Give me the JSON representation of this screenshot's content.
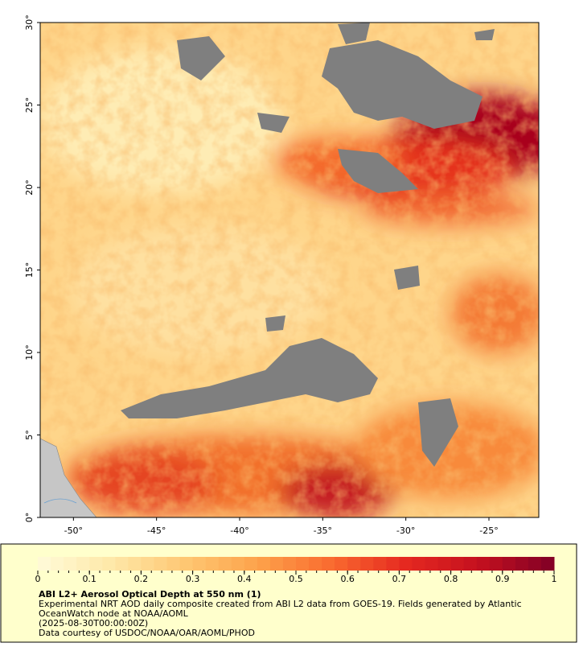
{
  "chart_data": {
    "type": "map",
    "xlim": [
      -52,
      -22
    ],
    "ylim": [
      0,
      30
    ],
    "xticks": [
      {
        "value": -50,
        "label": "-50°"
      },
      {
        "value": -45,
        "label": "-45°"
      },
      {
        "value": -40,
        "label": "-40°"
      },
      {
        "value": -35,
        "label": "-35°"
      },
      {
        "value": -30,
        "label": "-30°"
      },
      {
        "value": -25,
        "label": "-25°"
      }
    ],
    "yticks": [
      {
        "value": 0,
        "label": "0°"
      },
      {
        "value": 5,
        "label": "5°"
      },
      {
        "value": 10,
        "label": "10°"
      },
      {
        "value": 15,
        "label": "15°"
      },
      {
        "value": 20,
        "label": "20°"
      },
      {
        "value": 25,
        "label": "25°"
      },
      {
        "value": 30,
        "label": "30°"
      }
    ],
    "colorbar": {
      "lim": [
        0,
        1
      ],
      "ticks": [
        0,
        0.1,
        0.2,
        0.3,
        0.4,
        0.5,
        0.6,
        0.7,
        0.8,
        0.9,
        1
      ],
      "colormap": [
        "#fffbd9",
        "#fee8a8",
        "#fec773",
        "#fda24a",
        "#f9692f",
        "#e52820",
        "#c3101f",
        "#800026"
      ]
    },
    "title": "ABI L2+ Aerosol Optical Depth at 550 nm (1)",
    "caption": [
      "Experimental NRT AOD daily composite created from ABI L2 data from GOES-19. Fields generated by Atlantic",
      "OceanWatch node at NOAA/AOML",
      "(2025-08-30T00:00:00Z)",
      "Data courtesy of USDOC/NOAA/OAR/AOML/PHOD"
    ]
  }
}
